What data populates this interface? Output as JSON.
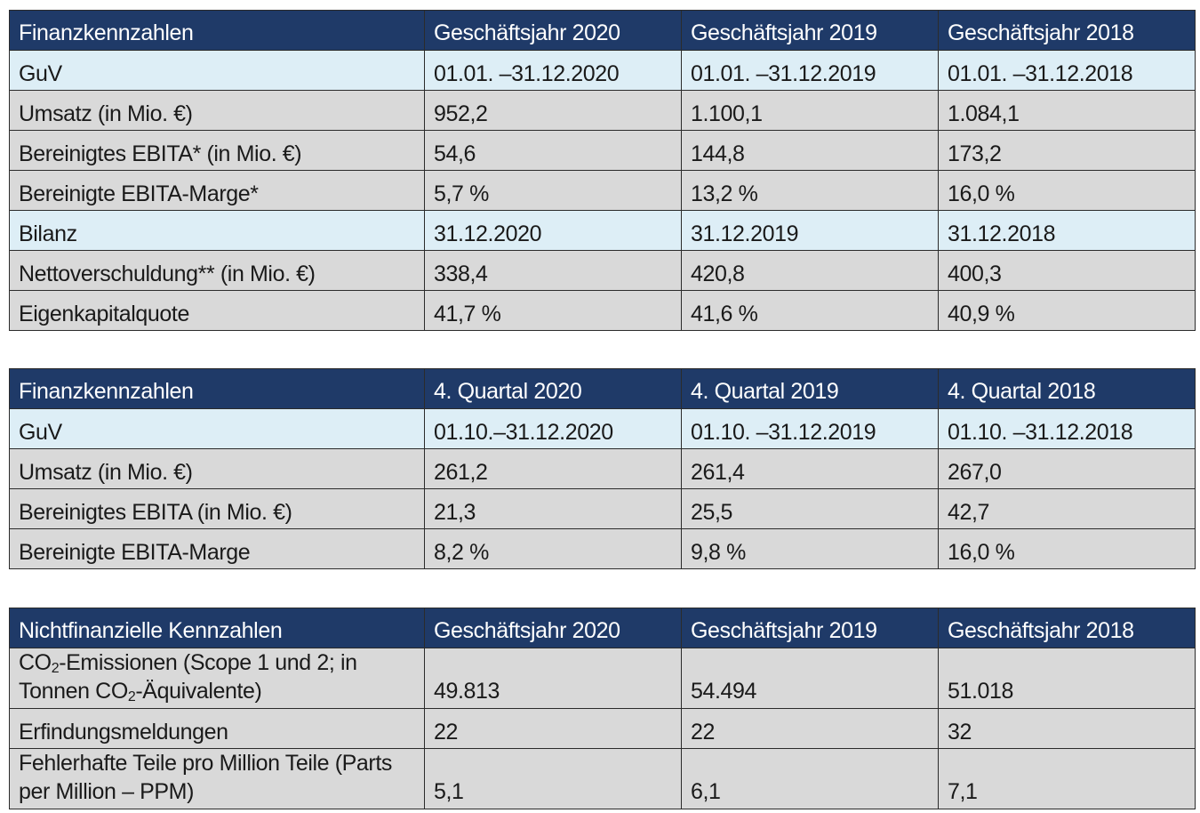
{
  "table1": {
    "header": [
      "Finanzkennzahlen",
      "Geschäftsjahr 2020",
      "Geschäftsjahr 2019",
      "Geschäftsjahr 2018"
    ],
    "rows": [
      [
        "GuV",
        "01.01. –31.12.2020",
        "01.01. –31.12.2019",
        "01.01. –31.12.2018"
      ],
      [
        "Umsatz (in Mio. €)",
        "952,2",
        "1.100,1",
        "1.084,1"
      ],
      [
        "Bereinigtes EBITA* (in Mio. €)",
        "54,6",
        "144,8",
        "173,2"
      ],
      [
        "Bereinigte EBITA-Marge*",
        "5,7 %",
        "13,2 %",
        "16,0 %"
      ],
      [
        "Bilanz",
        "31.12.2020",
        "31.12.2019",
        "31.12.2018"
      ],
      [
        "Nettoverschuldung** (in Mio. €)",
        "338,4",
        "420,8",
        "400,3"
      ],
      [
        "Eigenkapitalquote",
        "41,7 %",
        "41,6 %",
        "40,9 %"
      ]
    ]
  },
  "table2": {
    "header": [
      "Finanzkennzahlen",
      "4. Quartal 2020",
      "4. Quartal 2019",
      "4. Quartal 2018"
    ],
    "rows": [
      [
        "GuV",
        "01.10.–31.12.2020",
        "01.10. –31.12.2019",
        "01.10. –31.12.2018"
      ],
      [
        "Umsatz (in Mio. €)",
        "261,2",
        "261,4",
        "267,0"
      ],
      [
        "Bereinigtes EBITA (in Mio. €)",
        "21,3",
        "25,5",
        "42,7"
      ],
      [
        "Bereinigte EBITA-Marge",
        "8,2 %",
        "9,8 %",
        "16,0 %"
      ]
    ]
  },
  "table3": {
    "header": [
      "Nichtfinanzielle Kennzahlen",
      "Geschäftsjahr 2020",
      "Geschäftsjahr 2019",
      "Geschäftsjahr 2018"
    ],
    "co2_label": {
      "line1_a": "CO",
      "line1_sub": "2",
      "line1_b": "-Emissionen (Scope 1 und 2; in",
      "line2_a": "Tonnen CO",
      "line2_sub": "2",
      "line2_b": "-Äquivalente)"
    },
    "co2_values": [
      "49.813",
      "54.494",
      "51.018"
    ],
    "rows": [
      [
        "Erfindungsmeldungen",
        "22",
        "22",
        "32"
      ]
    ],
    "ppm_label": [
      "Fehlerhafte Teile pro Million Teile (Parts",
      "per Million – PPM)"
    ],
    "ppm_values": [
      "5,1",
      "6,1",
      "7,1"
    ]
  }
}
